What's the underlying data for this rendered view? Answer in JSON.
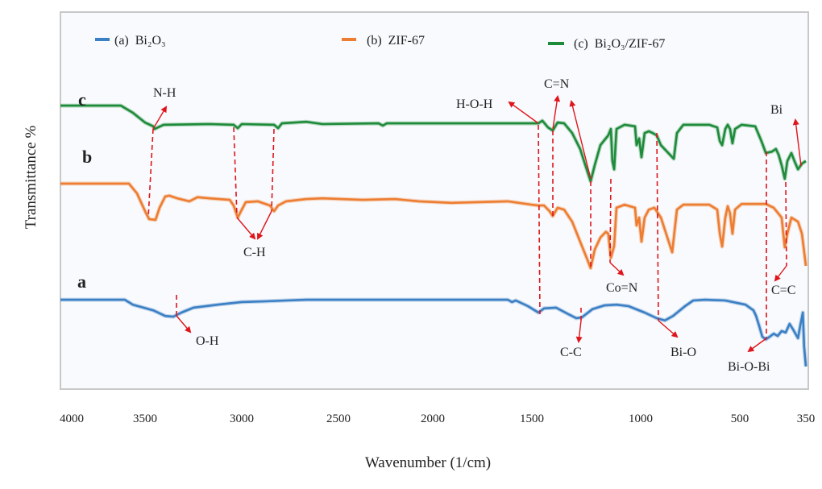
{
  "chart_data": {
    "type": "line",
    "xlabel": "Wavenumber (1/cm)",
    "ylabel": "Transmittance %",
    "x_ticks": [
      "4000",
      "3500",
      "3000",
      "2500",
      "2000",
      "1500",
      "1000",
      "500",
      "350"
    ],
    "x_reversed": true,
    "grid": false,
    "legend_position": "top",
    "legend": [
      {
        "label": "(a)  Bi₂O₃",
        "color": "#3b7fc4"
      },
      {
        "label": "(b)  ZIF-67",
        "color": "#ed7d31"
      },
      {
        "label": "(c)  Bi₂O₃/ZIF-67",
        "color": "#1e8b3a"
      }
    ],
    "curve_letters": {
      "a": "a",
      "b": "b",
      "c": "c"
    },
    "annotations": {
      "nh": "N-H",
      "ch": "C-H",
      "oh": "O-H",
      "hoh": "H-O-H",
      "cn": "C=N",
      "con": "Co=N",
      "bio": "Bi-O",
      "cc": "C-C",
      "bioBi": "Bi-O-Bi",
      "c_c": "C=C",
      "bi": "Bi"
    },
    "series": [
      {
        "name": "(a)  Bi₂O₃",
        "color": "#3b7fc4",
        "x": [
          4077,
          3638,
          3583,
          3458,
          3396,
          3354,
          3312,
          3250,
          3125,
          3000,
          2875,
          2771,
          2667,
          1621,
          1601,
          1581,
          1520,
          1470,
          1444,
          1389,
          1333,
          1296,
          1271,
          1222,
          1167,
          1111,
          1056,
          980,
          919,
          878,
          837,
          776,
          735,
          675,
          573,
          487,
          469,
          463,
          456,
          449,
          441,
          432,
          423,
          414,
          405,
          396,
          387,
          378,
          368,
          363,
          357,
          354,
          350
        ],
        "y": [
          23.7,
          23.7,
          22.4,
          20.9,
          19.4,
          19.2,
          20.3,
          21.6,
          22.4,
          23.1,
          23.3,
          23.5,
          23.7,
          23.7,
          23.1,
          23.5,
          22.0,
          20.3,
          21.4,
          21.6,
          19.9,
          18.8,
          19.0,
          21.2,
          22.2,
          22.4,
          22.0,
          20.3,
          18.8,
          18.2,
          19.4,
          22.0,
          23.5,
          23.7,
          23.5,
          22.4,
          20.9,
          19.4,
          16.7,
          13.9,
          13.2,
          13.9,
          14.7,
          14.1,
          15.4,
          15.0,
          17.3,
          15.6,
          13.5,
          16.7,
          20.3,
          11.3,
          6.0
        ]
      },
      {
        "name": "(b)  ZIF-67",
        "color": "#ed7d31",
        "x": [
          4077,
          3610,
          3555,
          3500,
          3479,
          3446,
          3425,
          3396,
          3375,
          3333,
          3271,
          3229,
          3166,
          3062,
          3042,
          3021,
          3000,
          2979,
          2917,
          2854,
          2833,
          2812,
          2771,
          2667,
          2583,
          2372,
          2201,
          2073,
          1906,
          1621,
          1500,
          1470,
          1444,
          1419,
          1404,
          1382,
          1352,
          1315,
          1278,
          1248,
          1230,
          1211,
          1185,
          1160,
          1149,
          1137,
          1122,
          1111,
          1074,
          1026,
          1019,
          1007,
          996,
          980,
          959,
          931,
          898,
          841,
          817,
          785,
          654,
          614,
          601,
          589,
          573,
          561,
          549,
          537,
          524,
          496,
          441,
          423,
          405,
          398,
          392,
          383,
          368,
          359,
          350
        ],
        "y": [
          54.5,
          54.5,
          51.9,
          47.2,
          45.1,
          44.9,
          48.1,
          51.1,
          51.3,
          50.6,
          49.8,
          50.9,
          50.6,
          50.2,
          48.7,
          45.5,
          47.6,
          49.6,
          49.8,
          48.7,
          47.2,
          48.7,
          49.8,
          50.4,
          50.6,
          50.2,
          50.4,
          49.8,
          49.4,
          49.8,
          48.9,
          48.7,
          48.7,
          47.2,
          45.9,
          48.1,
          47.6,
          44.4,
          39.1,
          34.8,
          32.1,
          37.0,
          40.2,
          41.7,
          41.2,
          34.8,
          38.0,
          48.1,
          48.9,
          48.1,
          43.4,
          45.5,
          39.1,
          45.5,
          47.6,
          48.1,
          45.5,
          36.3,
          47.6,
          48.9,
          48.9,
          47.6,
          41.2,
          37.8,
          45.5,
          48.5,
          46.6,
          41.2,
          47.6,
          49.1,
          49.1,
          48.1,
          45.5,
          37.6,
          41.2,
          45.5,
          44.4,
          41.2,
          32.7
        ]
      },
      {
        "name": "(c)  Bi₂O₃/ZIF-67",
        "color": "#1e8b3a",
        "x": [
          4077,
          3665,
          3583,
          3500,
          3458,
          3451,
          3404,
          3166,
          3042,
          3021,
          3000,
          2833,
          2812,
          2792,
          2667,
          2583,
          2287,
          2265,
          2244,
          1581,
          1470,
          1452,
          1426,
          1404,
          1382,
          1352,
          1315,
          1278,
          1248,
          1230,
          1211,
          1185,
          1149,
          1137,
          1130,
          1122,
          1111,
          1074,
          1026,
          1019,
          1007,
          996,
          980,
          959,
          939,
          919,
          898,
          833,
          817,
          785,
          654,
          614,
          601,
          589,
          573,
          561,
          549,
          537,
          524,
          496,
          465,
          451,
          441,
          427,
          418,
          412,
          405,
          398,
          392,
          383,
          376,
          368,
          359,
          350
        ],
        "y": [
          75.2,
          75.2,
          73.3,
          70.7,
          69.7,
          69.0,
          70.1,
          70.3,
          70.1,
          69.2,
          70.3,
          70.1,
          69.2,
          70.5,
          70.9,
          70.3,
          70.5,
          69.9,
          70.5,
          70.5,
          70.5,
          71.2,
          69.4,
          68.6,
          70.7,
          70.5,
          67.9,
          63.7,
          58.3,
          55.1,
          59.4,
          64.7,
          67.3,
          69.0,
          60.5,
          58.3,
          69.0,
          70.1,
          69.7,
          64.7,
          66.5,
          61.5,
          67.9,
          68.4,
          67.9,
          67.3,
          64.7,
          61.1,
          67.9,
          70.1,
          70.1,
          69.4,
          65.8,
          64.7,
          69.0,
          70.1,
          69.0,
          65.2,
          69.0,
          70.1,
          69.7,
          65.8,
          62.6,
          63.0,
          63.7,
          62.2,
          59.4,
          55.8,
          60.5,
          62.6,
          60.5,
          58.3,
          59.8,
          60.5
        ]
      }
    ]
  }
}
